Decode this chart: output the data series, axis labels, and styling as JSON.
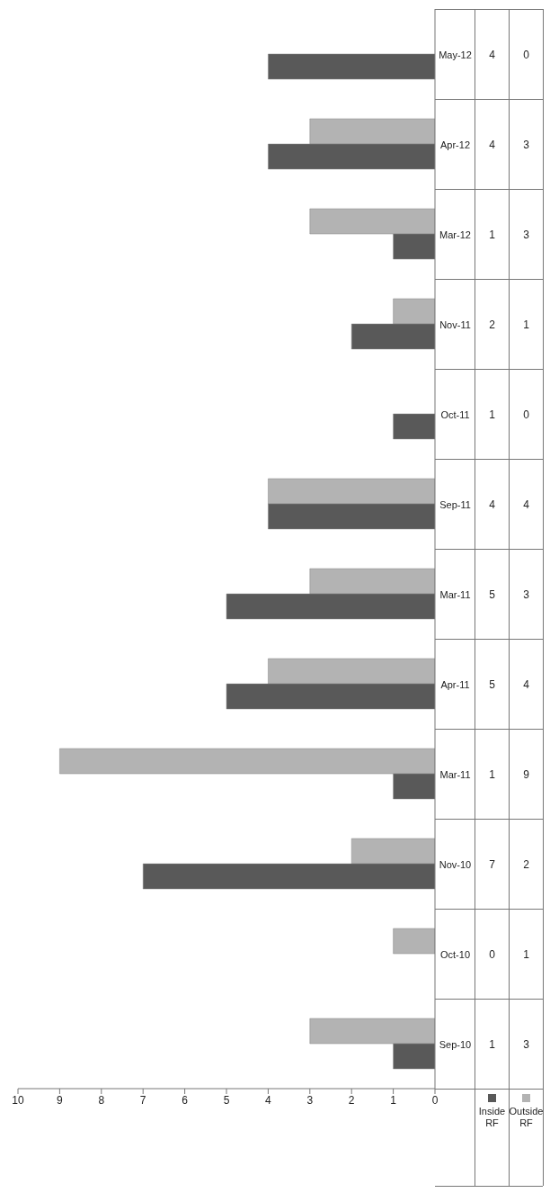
{
  "chart_data": {
    "type": "bar",
    "orientation": "horizontal",
    "categories": [
      "May-12",
      "Apr-12",
      "Mar-12",
      "Nov-11",
      "Oct-11",
      "Sep-11",
      "Mar-11",
      "Apr-11",
      "Mar-11",
      "Nov-10",
      "Oct-10",
      "Sep-10"
    ],
    "series": [
      {
        "name": "Inside RF",
        "color": "#595959",
        "values": [
          4,
          4,
          1,
          2,
          1,
          4,
          5,
          5,
          1,
          7,
          0,
          1
        ]
      },
      {
        "name": "Outside RF",
        "color": "#b3b3b3",
        "values": [
          0,
          3,
          3,
          1,
          0,
          4,
          3,
          4,
          9,
          2,
          1,
          3
        ]
      }
    ],
    "xlim": [
      10,
      0
    ],
    "xticks": [
      10,
      9,
      8,
      7,
      6,
      5,
      4,
      3,
      2,
      1,
      0
    ],
    "grid": false,
    "legend": "bottom",
    "data_labels": true
  }
}
